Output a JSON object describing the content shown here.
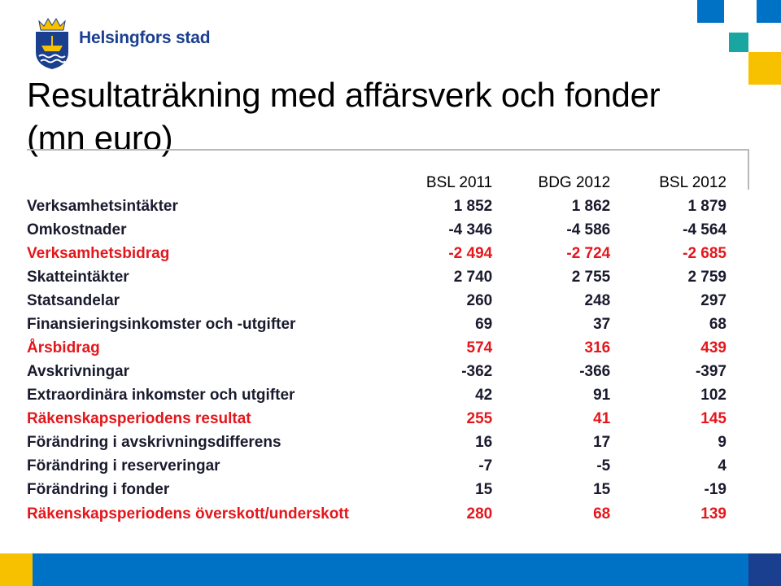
{
  "header": {
    "brand": "Helsingfors stad",
    "logo_icon": "helsinki-coat-of-arms-icon"
  },
  "slide": {
    "title": "Resultaträkning med affärsverk och fonder (mn euro)"
  },
  "table": {
    "columns": [
      "BSL 2011",
      "BDG 2012",
      "BSL 2012"
    ],
    "rows": [
      {
        "label": "Verksamhetsintäkter",
        "values": [
          "1 852",
          "1 862",
          "1 879"
        ],
        "highlight": false
      },
      {
        "label": "Omkostnader",
        "values": [
          "-4 346",
          "-4 586",
          "-4 564"
        ],
        "highlight": false
      },
      {
        "label": "Verksamhetsbidrag",
        "values": [
          "-2 494",
          "-2 724",
          "-2 685"
        ],
        "highlight": true
      },
      {
        "label": "Skatteintäkter",
        "values": [
          "2 740",
          "2 755",
          "2 759"
        ],
        "highlight": false
      },
      {
        "label": "Statsandelar",
        "values": [
          "260",
          "248",
          "297"
        ],
        "highlight": false
      },
      {
        "label": "Finansieringsinkomster och -utgifter",
        "values": [
          "69",
          "37",
          "68"
        ],
        "highlight": false
      },
      {
        "label": "Årsbidrag",
        "values": [
          "574",
          "316",
          "439"
        ],
        "highlight": true
      },
      {
        "label": "Avskrivningar",
        "values": [
          "-362",
          "-366",
          "-397"
        ],
        "highlight": false
      },
      {
        "label": "Extraordinära inkomster och utgifter",
        "values": [
          "42",
          "91",
          "102"
        ],
        "highlight": false
      },
      {
        "label": "Räkenskapsperiodens resultat",
        "values": [
          "255",
          "41",
          "145"
        ],
        "highlight": true
      },
      {
        "label": "Förändring i avskrivningsdifferens",
        "values": [
          "16",
          "17",
          "9"
        ],
        "highlight": false
      },
      {
        "label": "Förändring i reserveringar",
        "values": [
          "-7",
          "-5",
          "4"
        ],
        "highlight": false
      },
      {
        "label": "Förändring i fonder",
        "values": [
          "15",
          "15",
          "-19"
        ],
        "highlight": false
      },
      {
        "label": "Räkenskapsperiodens överskott/underskott",
        "values": [
          "280",
          "68",
          "139"
        ],
        "highlight": true
      }
    ]
  },
  "colors": {
    "accent_red": "#e3171c",
    "brand_blue": "#1b3f8f",
    "band_blue": "#0072c6",
    "yellow": "#f7c100",
    "teal": "#1aa6a0"
  }
}
